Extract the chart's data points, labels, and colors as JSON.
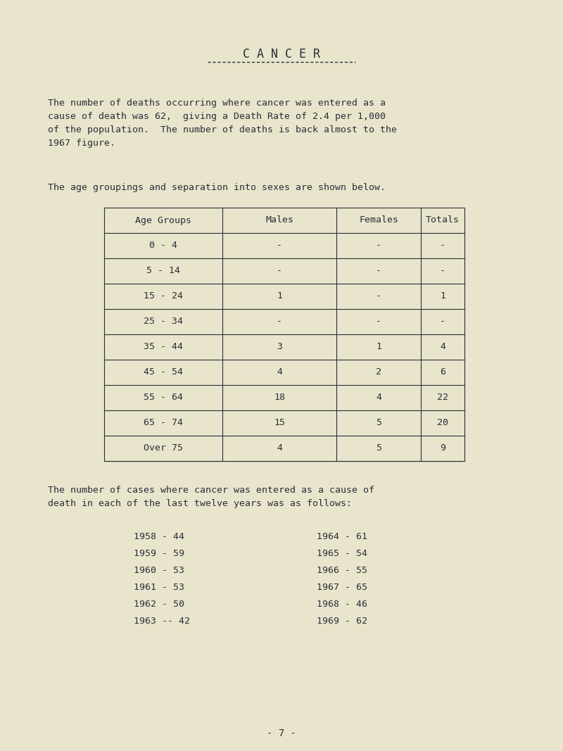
{
  "bg_color": "#e8e5cc",
  "text_color": "#2c2c3a",
  "title": "C A N C E R",
  "para1_lines": [
    "The number of deaths occurring where cancer was entered as a",
    "cause of death was 62,  giving a Death Rate of 2.4 per 1,000",
    "of the population.  The number of deaths is back almost to the",
    "1967 figure."
  ],
  "para2": "The age groupings and separation into sexes are shown below.",
  "table_headers": [
    "Age Groups",
    "Males",
    "Females",
    "Totals"
  ],
  "table_rows": [
    [
      "0 - 4",
      "-",
      "-",
      "-"
    ],
    [
      "5 - 14",
      "-",
      "-",
      "-"
    ],
    [
      "15 - 24",
      "1",
      "-",
      "1"
    ],
    [
      "25 - 34",
      "-",
      "-",
      "-"
    ],
    [
      "35 - 44",
      "3",
      "1",
      "4"
    ],
    [
      "45 - 54",
      "4",
      "2",
      "6"
    ],
    [
      "55 - 64",
      "18",
      "4",
      "22"
    ],
    [
      "65 - 74",
      "15",
      "5",
      "20"
    ],
    [
      "Over 75",
      "4",
      "5",
      "9"
    ]
  ],
  "para3_lines": [
    "The number of cases where cancer was entered as a cause of",
    "death in each of the last twelve years was as follows:"
  ],
  "years_left": [
    "1958 - 44",
    "1959 - 59",
    "1960 - 53",
    "1961 - 53",
    "1962 - 50",
    "1963 -- 42"
  ],
  "years_right": [
    "1964 - 61",
    "1965 - 54",
    "1966 - 55",
    "1967 - 65",
    "1968 - 46",
    "1969 - 62"
  ],
  "page_num": "- 7 -",
  "font_size_title": 12,
  "font_size_body": 9.5,
  "font_size_table": 9.5,
  "font_size_page": 10
}
